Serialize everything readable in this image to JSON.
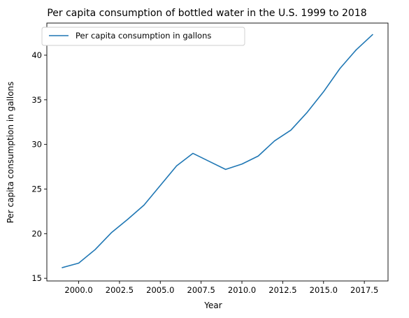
{
  "chart_data": {
    "type": "line",
    "title": "Per capita consumption of bottled water in the U.S. 1999 to 2018",
    "xlabel": "Year",
    "ylabel": "Per capita consumption in gallons",
    "xlim": [
      1998.05,
      2018.95
    ],
    "ylim": [
      14.7,
      43.6
    ],
    "x_ticks": [
      2000.0,
      2002.5,
      2005.0,
      2007.5,
      2010.0,
      2012.5,
      2015.0,
      2017.5
    ],
    "x_tick_labels": [
      "2000.0",
      "2002.5",
      "2005.0",
      "2007.5",
      "2010.0",
      "2012.5",
      "2015.0",
      "2017.5"
    ],
    "y_ticks": [
      15,
      20,
      25,
      30,
      35,
      40
    ],
    "y_tick_labels": [
      "15",
      "20",
      "25",
      "30",
      "35",
      "40"
    ],
    "grid": false,
    "legend_position": "top-left",
    "series": [
      {
        "name": "Per capita consumption in gallons",
        "color": "#1f77b4",
        "x": [
          1999,
          2000,
          2001,
          2002,
          2003,
          2004,
          2005,
          2006,
          2007,
          2008,
          2009,
          2010,
          2011,
          2012,
          2013,
          2014,
          2015,
          2016,
          2017,
          2018
        ],
        "y": [
          16.2,
          16.7,
          18.2,
          20.1,
          21.6,
          23.2,
          25.4,
          27.6,
          29.0,
          28.1,
          27.2,
          27.8,
          28.7,
          30.4,
          31.6,
          33.6,
          35.9,
          38.5,
          40.6,
          42.3
        ]
      }
    ]
  }
}
